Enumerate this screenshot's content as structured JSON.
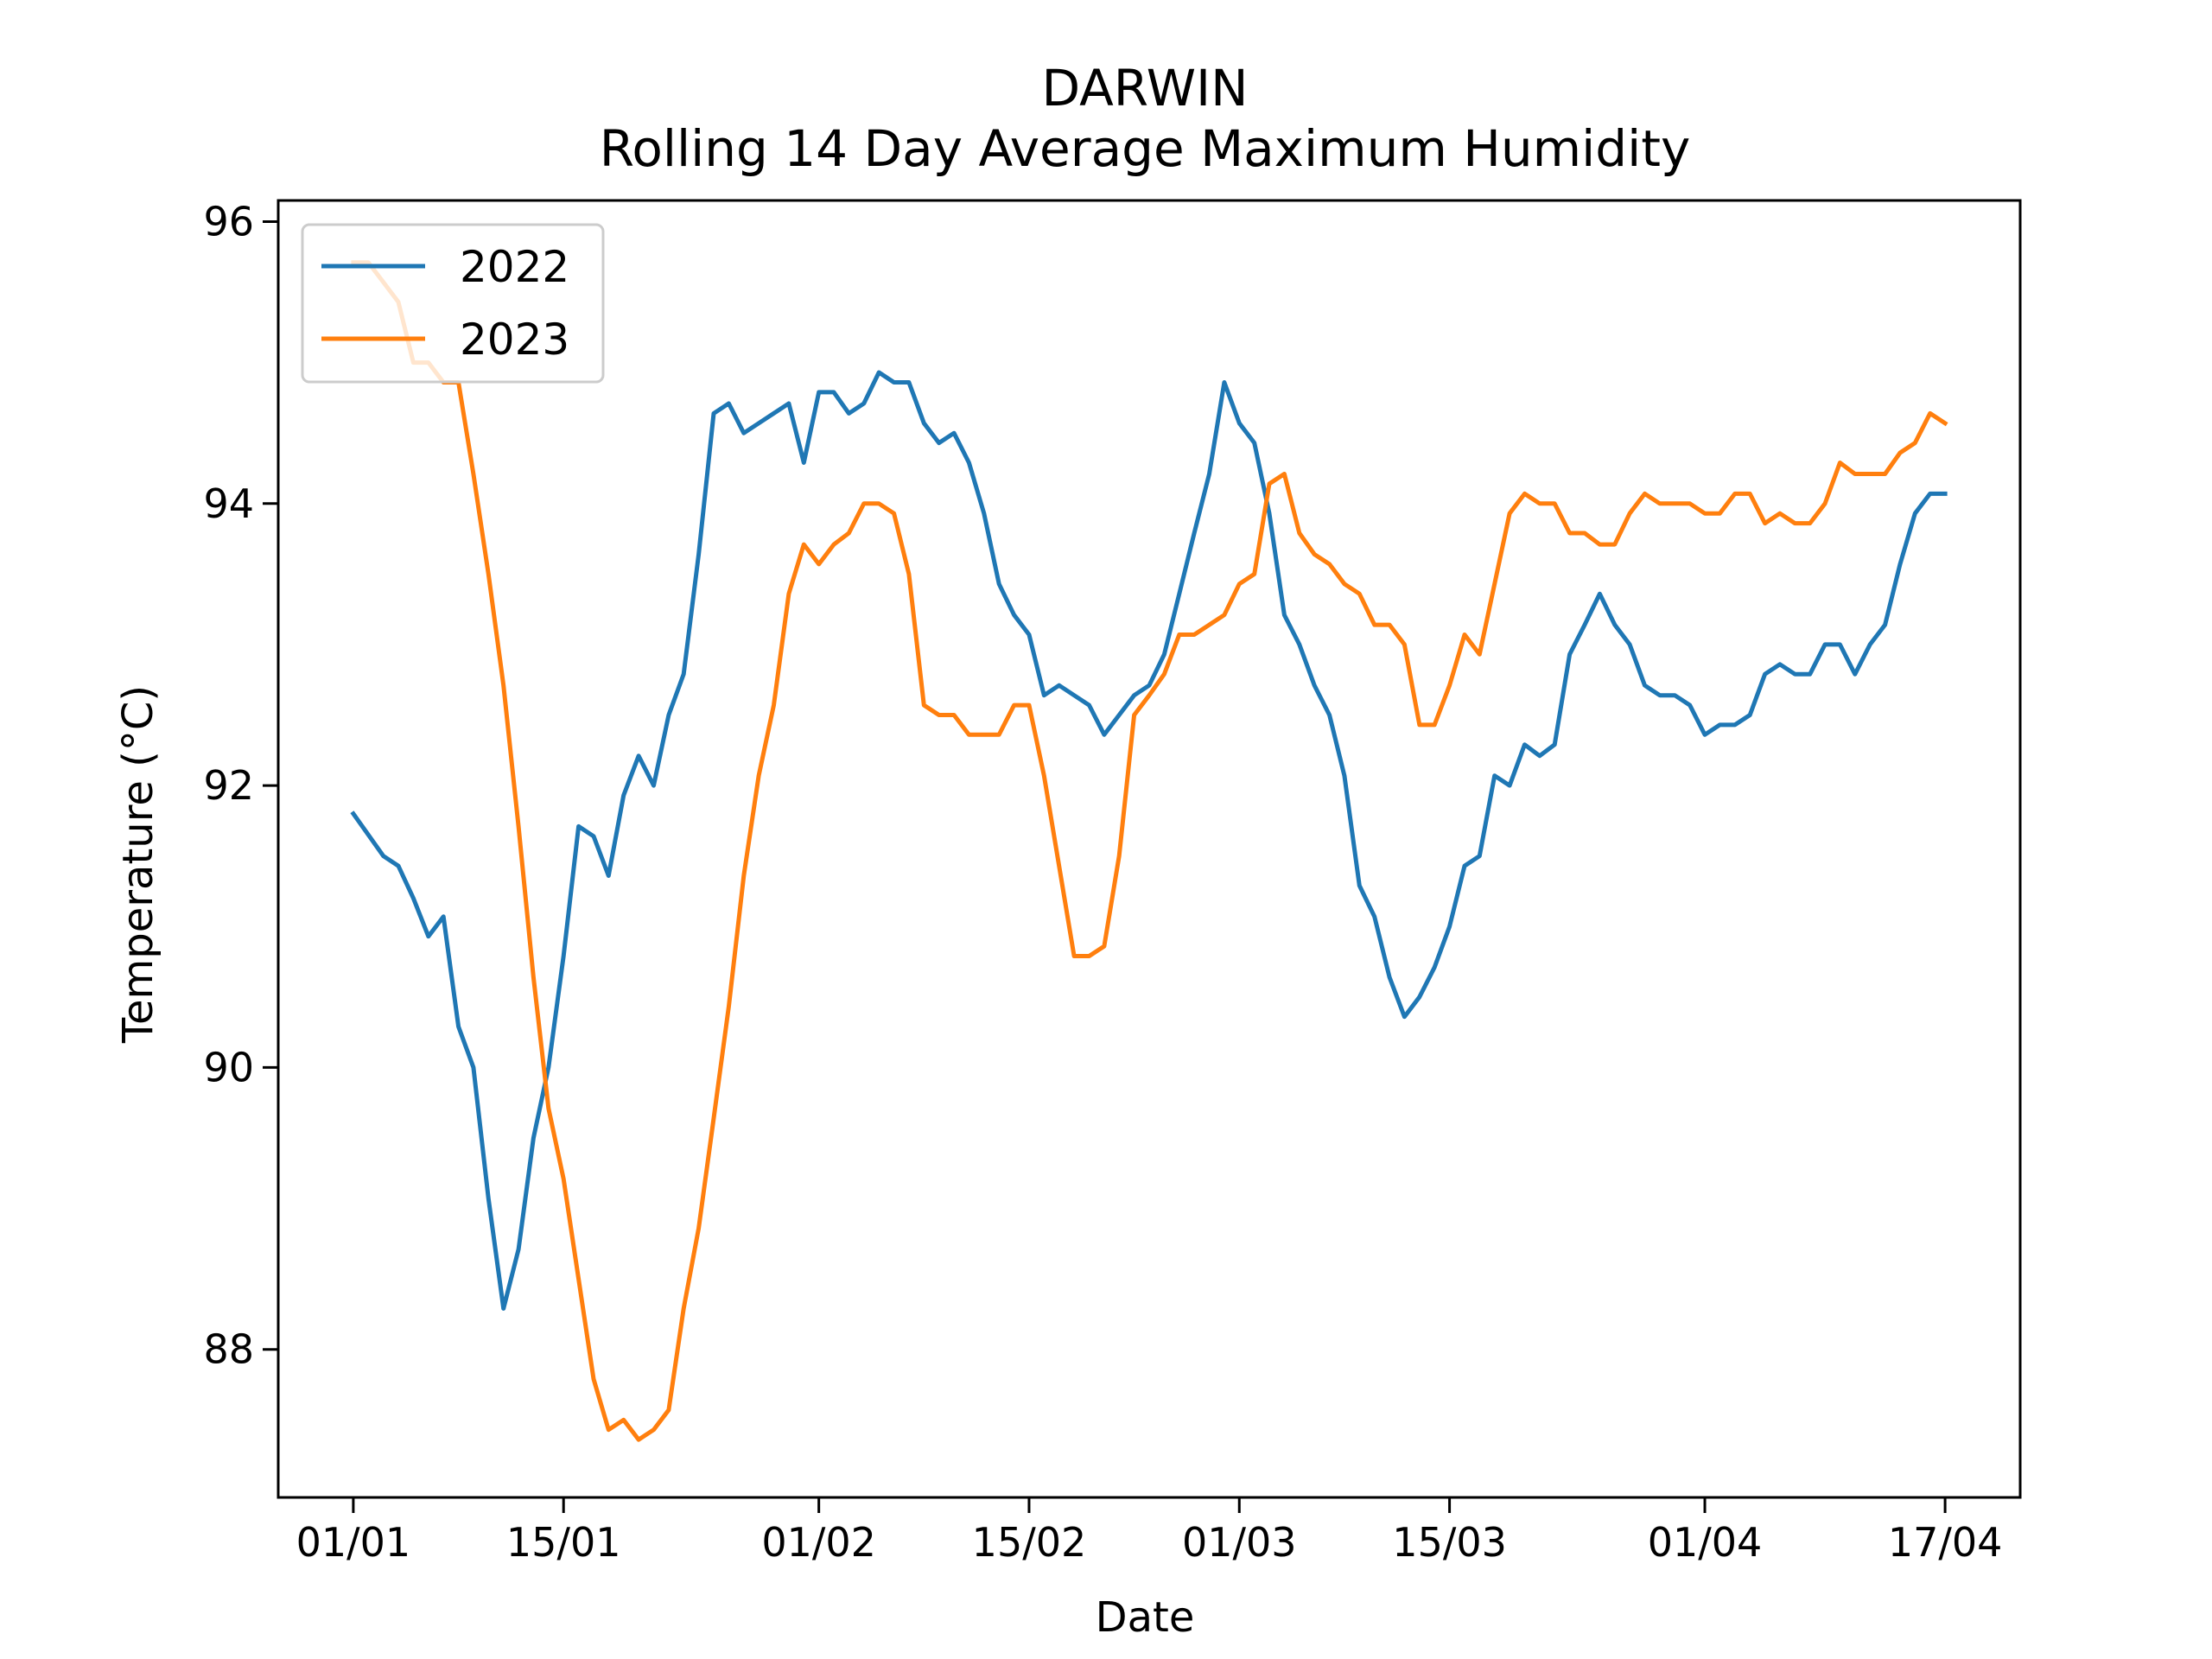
{
  "chart_data": {
    "type": "line",
    "title": "DARWIN",
    "subtitle": "Rolling 14 Day Average Maximum Humidity",
    "xlabel": "Date",
    "ylabel": "Temperature (°C)",
    "x_type": "date",
    "xlim": [
      "2000-12-27",
      "2001-04-22"
    ],
    "ylim": [
      86.95,
      96.15
    ],
    "x_ticks": [
      {
        "date": "2001-01-01",
        "label": "01/01"
      },
      {
        "date": "2001-01-15",
        "label": "15/01"
      },
      {
        "date": "2001-02-01",
        "label": "01/02"
      },
      {
        "date": "2001-02-15",
        "label": "15/02"
      },
      {
        "date": "2001-03-01",
        "label": "01/03"
      },
      {
        "date": "2001-03-15",
        "label": "15/03"
      },
      {
        "date": "2001-04-01",
        "label": "01/04"
      },
      {
        "date": "2001-04-17",
        "label": "17/04"
      }
    ],
    "y_ticks": [
      88,
      90,
      92,
      94,
      96
    ],
    "grid": false,
    "legend_position": "top-left",
    "series": [
      {
        "name": "2022",
        "color": "#1f77b4",
        "start": "2001-01-01",
        "values": [
          91.8,
          91.65,
          91.5,
          91.43,
          91.2,
          90.93,
          91.07,
          90.29,
          90.0,
          89.07,
          88.29,
          88.71,
          89.5,
          90.0,
          90.79,
          91.71,
          91.64,
          91.36,
          91.93,
          92.21,
          92.0,
          92.5,
          92.79,
          93.64,
          94.64,
          94.71,
          94.5,
          94.57,
          94.64,
          94.71,
          94.29,
          94.79,
          94.79,
          94.64,
          94.71,
          94.93,
          94.86,
          94.86,
          94.57,
          94.43,
          94.5,
          94.29,
          93.93,
          93.43,
          93.21,
          93.07,
          92.64,
          92.71,
          92.64,
          92.57,
          92.36,
          92.5,
          92.64,
          92.71,
          92.93,
          93.36,
          93.79,
          94.21,
          94.86,
          94.57,
          94.43,
          93.93,
          93.21,
          93.0,
          92.71,
          92.5,
          92.07,
          91.29,
          91.07,
          90.64,
          90.36,
          90.5,
          90.71,
          91.0,
          91.43,
          91.5,
          92.07,
          92.0,
          92.29,
          92.21,
          92.29,
          92.93,
          93.14,
          93.36,
          93.14,
          93.0,
          92.71,
          92.64,
          92.64,
          92.57,
          92.36,
          92.43,
          92.43,
          92.5,
          92.79,
          92.86,
          92.79,
          92.79,
          93.0,
          93.0,
          92.79,
          93.0,
          93.14,
          93.57,
          93.93,
          94.07,
          94.07
        ]
      },
      {
        "name": "2023",
        "color": "#ff7f0e",
        "start": "2001-01-01",
        "values": [
          95.71,
          95.71,
          95.57,
          95.43,
          95.0,
          95.0,
          94.86,
          94.86,
          94.21,
          93.5,
          92.71,
          91.71,
          90.64,
          89.71,
          89.21,
          88.5,
          87.79,
          87.43,
          87.5,
          87.36,
          87.43,
          87.57,
          88.29,
          88.86,
          89.64,
          90.43,
          91.36,
          92.07,
          92.57,
          93.36,
          93.71,
          93.57,
          93.71,
          93.79,
          94.0,
          94.0,
          93.93,
          93.5,
          92.57,
          92.5,
          92.5,
          92.36,
          92.36,
          92.36,
          92.57,
          92.57,
          92.07,
          91.43,
          90.79,
          90.79,
          90.86,
          91.5,
          92.5,
          92.64,
          92.79,
          93.07,
          93.07,
          93.14,
          93.21,
          93.43,
          93.5,
          94.14,
          94.21,
          93.79,
          93.64,
          93.57,
          93.43,
          93.36,
          93.14,
          93.14,
          93.0,
          92.43,
          92.43,
          92.71,
          93.07,
          92.93,
          93.43,
          93.93,
          94.07,
          94.0,
          94.0,
          93.79,
          93.79,
          93.71,
          93.71,
          93.93,
          94.07,
          94.0,
          94.0,
          94.0,
          93.93,
          93.93,
          94.07,
          94.07,
          93.86,
          93.93,
          93.86,
          93.86,
          94.0,
          94.29,
          94.21,
          94.21,
          94.21,
          94.36,
          94.43,
          94.64,
          94.57
        ]
      }
    ]
  }
}
